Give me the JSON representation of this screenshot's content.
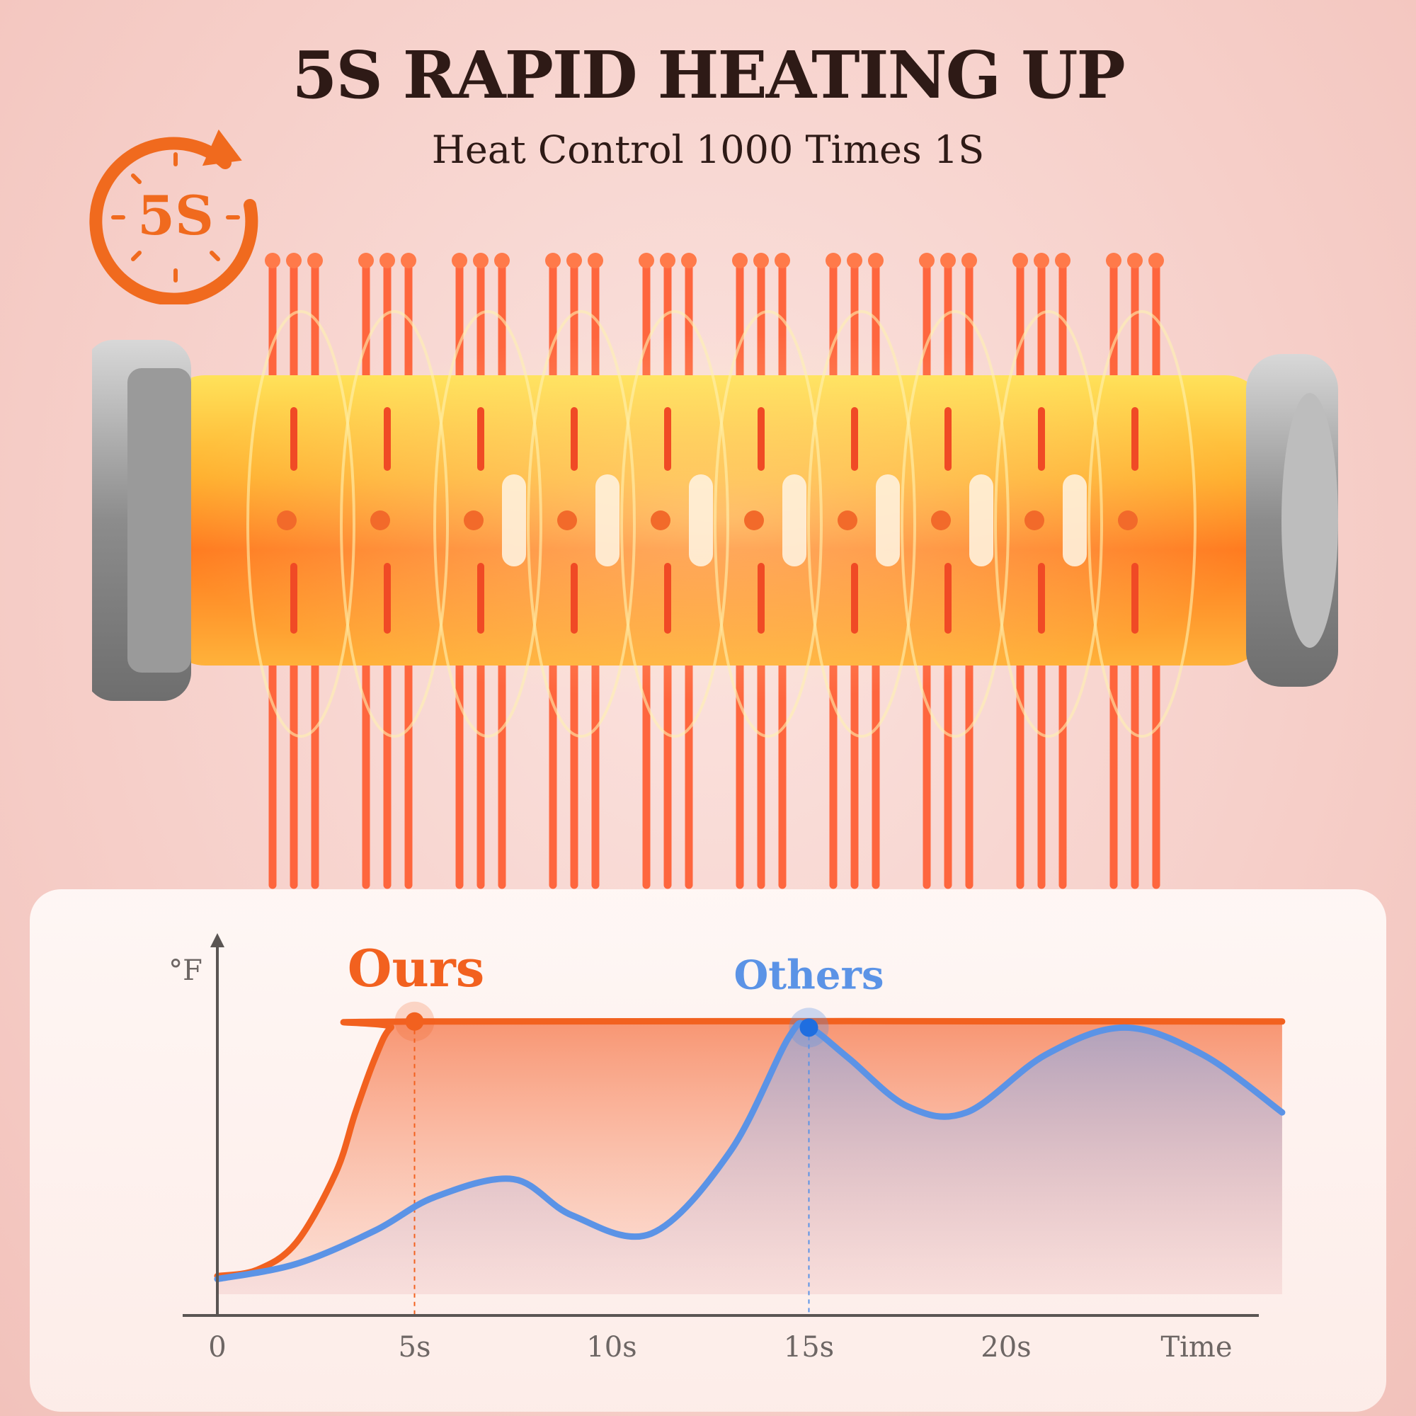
{
  "header": {
    "title": "5S RAPID HEATING UP",
    "subtitle": "Heat Control 1000 Times 1S"
  },
  "badge": {
    "label": "5S",
    "icon": "timer-arrow-icon",
    "color": "#f06a1e"
  },
  "chart_data": {
    "type": "line",
    "ylabel": "°F",
    "xlabel": "Time",
    "x_ticks": [
      "0",
      "5s",
      "10s",
      "15s",
      "20s"
    ],
    "xlim": [
      0,
      27
    ],
    "ylim": [
      0,
      100
    ],
    "series": [
      {
        "name": "Ours",
        "color": "#f2611f",
        "x": [
          0,
          1,
          2,
          3,
          3.5,
          4,
          4.4,
          5,
          27
        ],
        "y": [
          6,
          8,
          17,
          40,
          60,
          78,
          88,
          90,
          90
        ],
        "marker_x": 5,
        "marker_y": 90
      },
      {
        "name": "Others",
        "color": "#5b93e6",
        "x": [
          0,
          2,
          4,
          5.5,
          7.5,
          9,
          11,
          13,
          14.5,
          15,
          16,
          17.5,
          19,
          21,
          23,
          25,
          27
        ],
        "y": [
          5,
          10,
          21,
          32,
          38,
          26,
          20,
          47,
          85,
          88,
          78,
          62,
          60,
          79,
          88,
          79,
          60
        ],
        "marker_x": 15,
        "marker_y": 88
      }
    ]
  }
}
